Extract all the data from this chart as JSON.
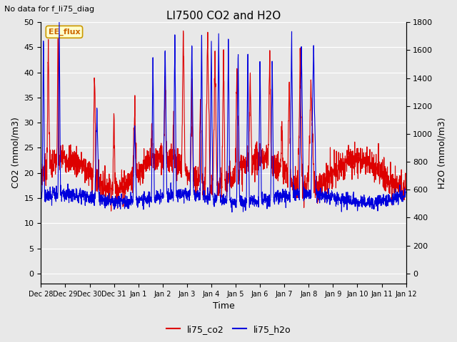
{
  "title": "LI7500 CO2 and H2O",
  "subtitle": "No data for f_li75_diag",
  "xlabel": "Time",
  "ylabel_left": "CO2 (mmol/m3)",
  "ylabel_right": "H2O (mmol/m3)",
  "ylim_left": [
    -2,
    50
  ],
  "ylim_right": [
    -72,
    1800
  ],
  "legend_label1": "li75_co2",
  "legend_label2": "li75_h2o",
  "legend_color1": "#dd0000",
  "legend_color2": "#0000dd",
  "shaded_label": "EE_flux",
  "plot_bg_color": "#e8e8e8",
  "x_tick_labels": [
    "Dec 28",
    "Dec 29",
    "Dec 30",
    "Dec 31",
    "Jan 1",
    "Jan 2",
    "Jan 3",
    "Jan 4",
    "Jan 5",
    "Jan 6",
    "Jan 7",
    "Jan 8",
    "Jan 9",
    "Jan 10",
    "Jan 11",
    "Jan 12"
  ],
  "yticks_left": [
    0,
    5,
    10,
    15,
    20,
    25,
    30,
    35,
    40,
    45,
    50
  ],
  "yticks_right": [
    0,
    200,
    400,
    600,
    800,
    1000,
    1200,
    1400,
    1600,
    1800
  ],
  "n_points": 2000,
  "seed": 7
}
